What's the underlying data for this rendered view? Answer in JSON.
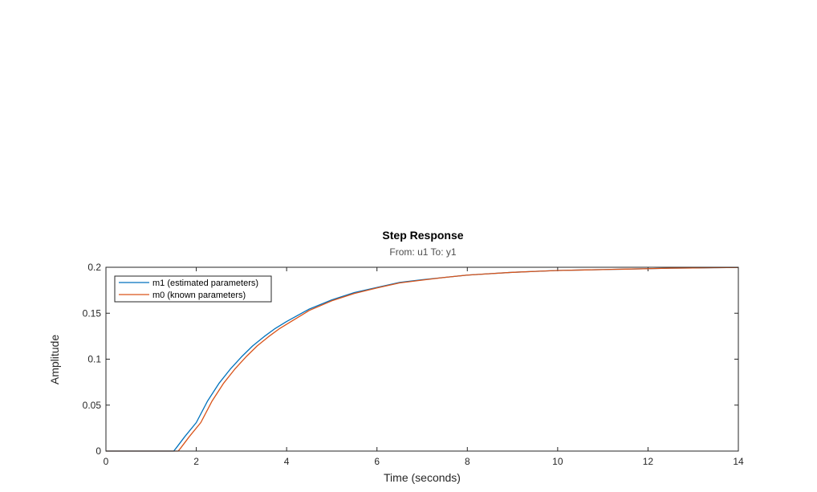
{
  "chart_data": {
    "type": "line",
    "title": "Step Response",
    "subtitle": "From: u1  To: y1",
    "xlabel": "Time (seconds)",
    "ylabel": "Amplitude",
    "xlim": [
      0,
      14
    ],
    "ylim": [
      0,
      0.2
    ],
    "xticks": [
      0,
      2,
      4,
      6,
      8,
      10,
      12,
      14
    ],
    "xtick_labels": [
      "0",
      "2",
      "4",
      "6",
      "8",
      "10",
      "12",
      "14"
    ],
    "yticks": [
      0,
      0.05,
      0.1,
      0.15,
      0.2
    ],
    "ytick_labels": [
      "0",
      "0.05",
      "0.1",
      "0.15",
      "0.2"
    ],
    "grid": false,
    "legend_position": "top-left",
    "series": [
      {
        "name": "m1 (estimated parameters)",
        "color": "#0072bd",
        "x": [
          0,
          1.5,
          1.55,
          1.75,
          2.0,
          2.25,
          2.5,
          2.75,
          3.0,
          3.25,
          3.5,
          3.75,
          4.0,
          4.5,
          5.0,
          5.5,
          6.0,
          6.5,
          7.0,
          7.5,
          8.0,
          8.5,
          9.0,
          9.5,
          10.0,
          10.5,
          11.0,
          11.5,
          12.0,
          12.5,
          13.0,
          13.5,
          14.0
        ],
        "y": [
          0,
          0,
          0.003,
          0.016,
          0.031,
          0.0545,
          0.0735,
          0.089,
          0.1025,
          0.1145,
          0.1245,
          0.1335,
          0.141,
          0.1545,
          0.1645,
          0.1725,
          0.178,
          0.1835,
          0.1865,
          0.189,
          0.1915,
          0.193,
          0.1945,
          0.1955,
          0.1965,
          0.197,
          0.1975,
          0.198,
          0.1985,
          0.199,
          0.1993,
          0.1996,
          0.1998
        ]
      },
      {
        "name": "m0 (known parameters)",
        "color": "#d95319",
        "x": [
          0,
          1.6,
          1.65,
          1.85,
          2.1,
          2.35,
          2.6,
          2.85,
          3.1,
          3.35,
          3.6,
          3.85,
          4.1,
          4.5,
          5.0,
          5.5,
          6.0,
          6.5,
          7.0,
          7.5,
          8.0,
          8.5,
          9.0,
          9.5,
          10.0,
          10.5,
          11.0,
          11.5,
          12.0,
          12.5,
          13.0,
          13.5,
          14.0
        ],
        "y": [
          0,
          0,
          0.003,
          0.016,
          0.031,
          0.0545,
          0.0735,
          0.089,
          0.1025,
          0.1145,
          0.1245,
          0.1335,
          0.141,
          0.153,
          0.1635,
          0.1715,
          0.1775,
          0.183,
          0.186,
          0.189,
          0.1915,
          0.193,
          0.1945,
          0.1955,
          0.1965,
          0.197,
          0.1975,
          0.198,
          0.1985,
          0.199,
          0.1993,
          0.1996,
          0.1998
        ]
      }
    ]
  },
  "colors": {
    "axes_frame": "#262626",
    "series_1": "#0072bd",
    "series_2": "#d95319"
  }
}
